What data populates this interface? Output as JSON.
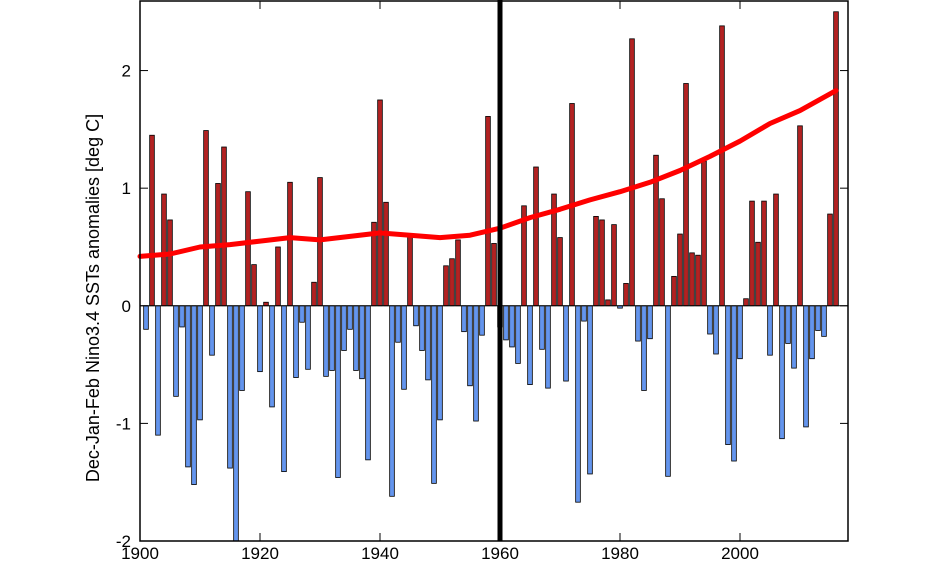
{
  "chart_data": {
    "type": "bar",
    "title": "",
    "xlabel": "",
    "ylabel": "Dec-Jan-Feb Nino3.4 SSTs anomalies [deg C]",
    "xlim": [
      1900,
      2018
    ],
    "ylim": [
      -2,
      2.6
    ],
    "x_ticks": [
      1900,
      1920,
      1940,
      1960,
      1980,
      2000
    ],
    "y_ticks": [
      -2,
      -1,
      0,
      1,
      2
    ],
    "x_tick_labels": [
      "1900",
      "1920",
      "1940",
      "1960",
      "1980",
      "2000"
    ],
    "y_tick_labels": [
      "-2",
      "-1",
      "0",
      "1",
      "2"
    ],
    "grid": false,
    "positive_color": "#b22222",
    "negative_color": "#6495ed",
    "trend_color": "#ff0000",
    "vertical_marker_year": 1960,
    "series": [
      {
        "type": "bar",
        "x": [
          1901,
          1902,
          1903,
          1904,
          1905,
          1906,
          1907,
          1908,
          1909,
          1910,
          1911,
          1912,
          1913,
          1914,
          1915,
          1916,
          1917,
          1918,
          1919,
          1920,
          1921,
          1922,
          1923,
          1924,
          1925,
          1926,
          1927,
          1928,
          1929,
          1930,
          1931,
          1932,
          1933,
          1934,
          1935,
          1936,
          1937,
          1938,
          1939,
          1940,
          1941,
          1942,
          1943,
          1944,
          1945,
          1946,
          1947,
          1948,
          1949,
          1950,
          1951,
          1952,
          1953,
          1954,
          1955,
          1956,
          1957,
          1958,
          1959,
          1960,
          1961,
          1962,
          1963,
          1964,
          1965,
          1966,
          1967,
          1968,
          1969,
          1970,
          1971,
          1972,
          1973,
          1974,
          1975,
          1976,
          1977,
          1978,
          1979,
          1980,
          1981,
          1982,
          1983,
          1984,
          1985,
          1986,
          1987,
          1988,
          1989,
          1990,
          1991,
          1992,
          1993,
          1994,
          1995,
          1996,
          1997,
          1998,
          1999,
          2000,
          2001,
          2002,
          2003,
          2004,
          2005,
          2006,
          2007,
          2008,
          2009,
          2010,
          2011,
          2012,
          2013,
          2014,
          2015,
          2016
        ],
        "values": [
          -0.2,
          1.45,
          -1.1,
          0.95,
          0.73,
          -0.77,
          -0.18,
          -1.37,
          -1.52,
          -0.97,
          1.49,
          -0.42,
          1.04,
          1.35,
          -1.38,
          -2.0,
          -0.72,
          0.97,
          0.35,
          -0.56,
          0.03,
          -0.86,
          0.5,
          -1.41,
          1.05,
          -0.61,
          -0.14,
          -0.54,
          0.2,
          1.09,
          -0.6,
          -0.55,
          -1.46,
          -0.38,
          -0.2,
          -0.55,
          -0.62,
          -1.31,
          0.71,
          1.75,
          0.88,
          -1.62,
          -0.31,
          -0.71,
          0.61,
          -0.17,
          -0.38,
          -0.63,
          -1.51,
          -0.97,
          0.34,
          0.4,
          0.56,
          -0.22,
          -0.68,
          -0.98,
          -0.25,
          1.61,
          0.53,
          -0.18,
          -0.29,
          -0.35,
          -0.49,
          0.85,
          -0.67,
          1.18,
          -0.37,
          -0.7,
          0.95,
          0.58,
          -0.64,
          1.72,
          -1.67,
          -0.13,
          -1.43,
          0.76,
          0.73,
          0.05,
          0.69,
          -0.02,
          0.19,
          2.27,
          -0.3,
          -0.72,
          -0.28,
          1.28,
          0.91,
          -1.45,
          0.25,
          0.61,
          1.89,
          0.45,
          0.43,
          1.23,
          -0.24,
          -0.41,
          2.38,
          -1.18,
          -1.32,
          -0.45,
          0.06,
          0.89,
          0.54,
          0.89,
          -0.42,
          0.95,
          -1.13,
          -0.32,
          -0.53,
          1.53,
          -1.03,
          -0.45,
          -0.21,
          -0.26,
          0.78,
          2.5
        ]
      },
      {
        "type": "line",
        "name": "",
        "x": [
          1900,
          1905,
          1910,
          1915,
          1920,
          1925,
          1930,
          1935,
          1940,
          1945,
          1950,
          1955,
          1960,
          1965,
          1970,
          1975,
          1980,
          1985,
          1990,
          1995,
          2000,
          2005,
          2010,
          2016
        ],
        "values": [
          0.42,
          0.44,
          0.5,
          0.52,
          0.55,
          0.58,
          0.56,
          0.59,
          0.62,
          0.6,
          0.58,
          0.6,
          0.66,
          0.75,
          0.82,
          0.9,
          0.97,
          1.05,
          1.15,
          1.27,
          1.4,
          1.55,
          1.66,
          1.83
        ]
      }
    ]
  }
}
